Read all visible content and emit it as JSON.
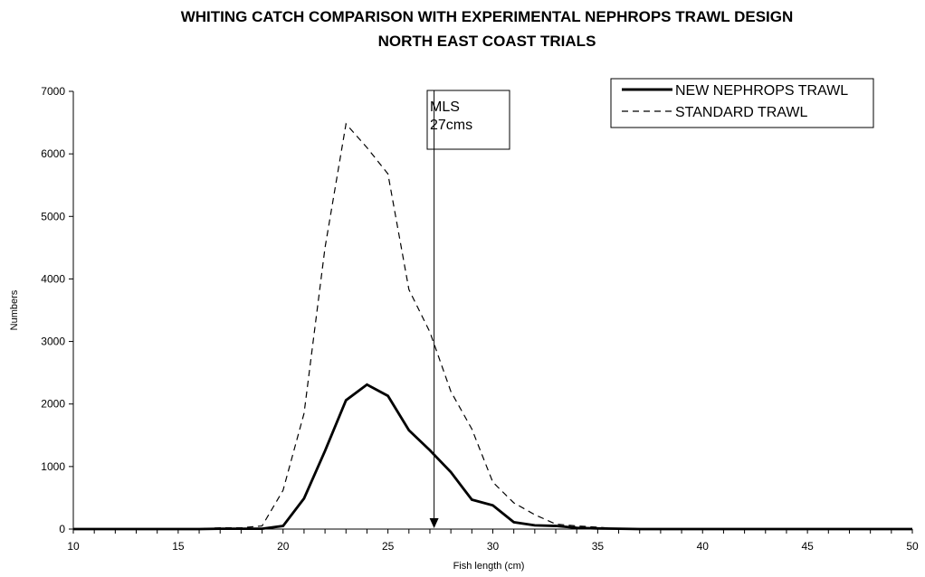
{
  "chart_data": {
    "type": "line",
    "title": "WHITING CATCH COMPARISON WITH EXPERIMENTAL NEPHROPS TRAWL DESIGN",
    "subtitle": "NORTH EAST COAST TRIALS",
    "xlabel": "Fish length (cm)",
    "ylabel": "Numbers",
    "xlim": [
      10,
      50
    ],
    "ylim": [
      0,
      7000
    ],
    "x_ticks": [
      10,
      15,
      20,
      25,
      30,
      35,
      40,
      45,
      50
    ],
    "y_ticks": [
      0,
      1000,
      2000,
      3000,
      4000,
      5000,
      6000,
      7000
    ],
    "grid": false,
    "legend_position": "top-right",
    "x": [
      10,
      11,
      12,
      13,
      14,
      15,
      16,
      17,
      18,
      19,
      20,
      21,
      22,
      23,
      24,
      25,
      26,
      27,
      28,
      29,
      30,
      31,
      32,
      33,
      34,
      35,
      36,
      37,
      38,
      39,
      40,
      41,
      42,
      43,
      44,
      45,
      46,
      47,
      48,
      49,
      50
    ],
    "series": [
      {
        "name": "NEW NEPHROPS TRAWL",
        "style": "solid",
        "values": [
          0,
          0,
          0,
          0,
          0,
          0,
          0,
          5,
          5,
          5,
          50,
          490,
          1250,
          2060,
          2310,
          2130,
          1580,
          1260,
          910,
          470,
          380,
          110,
          60,
          50,
          20,
          10,
          5,
          0,
          0,
          0,
          0,
          0,
          0,
          0,
          0,
          0,
          0,
          0,
          0,
          0,
          0
        ]
      },
      {
        "name": "STANDARD TRAWL",
        "style": "dashed",
        "values": [
          0,
          0,
          0,
          0,
          0,
          5,
          5,
          20,
          20,
          50,
          620,
          1850,
          4500,
          6480,
          6100,
          5680,
          3830,
          3150,
          2200,
          1600,
          750,
          420,
          230,
          80,
          50,
          30,
          5,
          5,
          0,
          0,
          0,
          0,
          0,
          0,
          0,
          0,
          0,
          0,
          0,
          0,
          0
        ]
      }
    ],
    "annotations": [
      {
        "lines": [
          "MLS",
          "27cms"
        ],
        "x": 27.2,
        "arrow": "down"
      }
    ],
    "colors": {
      "line": "#000000",
      "background": "#ffffff"
    }
  }
}
